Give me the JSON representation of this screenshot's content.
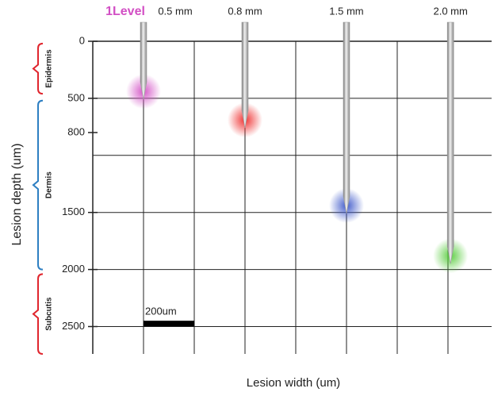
{
  "chart_data": {
    "type": "needle-depth",
    "brand": "1Level",
    "x_label": "Lesion width (um)",
    "y_label": "Lesion depth (um)",
    "xlim": [
      0,
      1572
    ],
    "ylim": [
      0,
      2740
    ],
    "yticks": [
      0,
      500,
      800,
      1500,
      2000,
      2500
    ],
    "xgrid": [
      200,
      400,
      600,
      800,
      1000,
      1200,
      1400
    ],
    "ygrid": [
      500,
      1000,
      1500,
      2000,
      2500
    ],
    "needles": [
      {
        "label": "0.5 mm",
        "x": 200,
        "depth": 440,
        "color": "#d24fc4"
      },
      {
        "label": "0.8 mm",
        "x": 600,
        "depth": 690,
        "color": "#ee2a2a"
      },
      {
        "label": "1.5 mm",
        "x": 1000,
        "depth": 1440,
        "color": "#3a55c8"
      },
      {
        "label": "2.0 mm",
        "x": 1410,
        "depth": 1880,
        "color": "#55cc3a"
      }
    ],
    "layers": [
      {
        "name": "Epidermis",
        "from": 20,
        "to": 460,
        "color": "#e0262e"
      },
      {
        "name": "Dermis",
        "from": 520,
        "to": 2000,
        "color": "#2e7fc2"
      },
      {
        "name": "Subcutis",
        "from": 2040,
        "to": 2740,
        "color": "#e0262e"
      }
    ],
    "scale_bar": {
      "label": "200um",
      "x": 200,
      "length": 200,
      "depth": 2470
    }
  }
}
